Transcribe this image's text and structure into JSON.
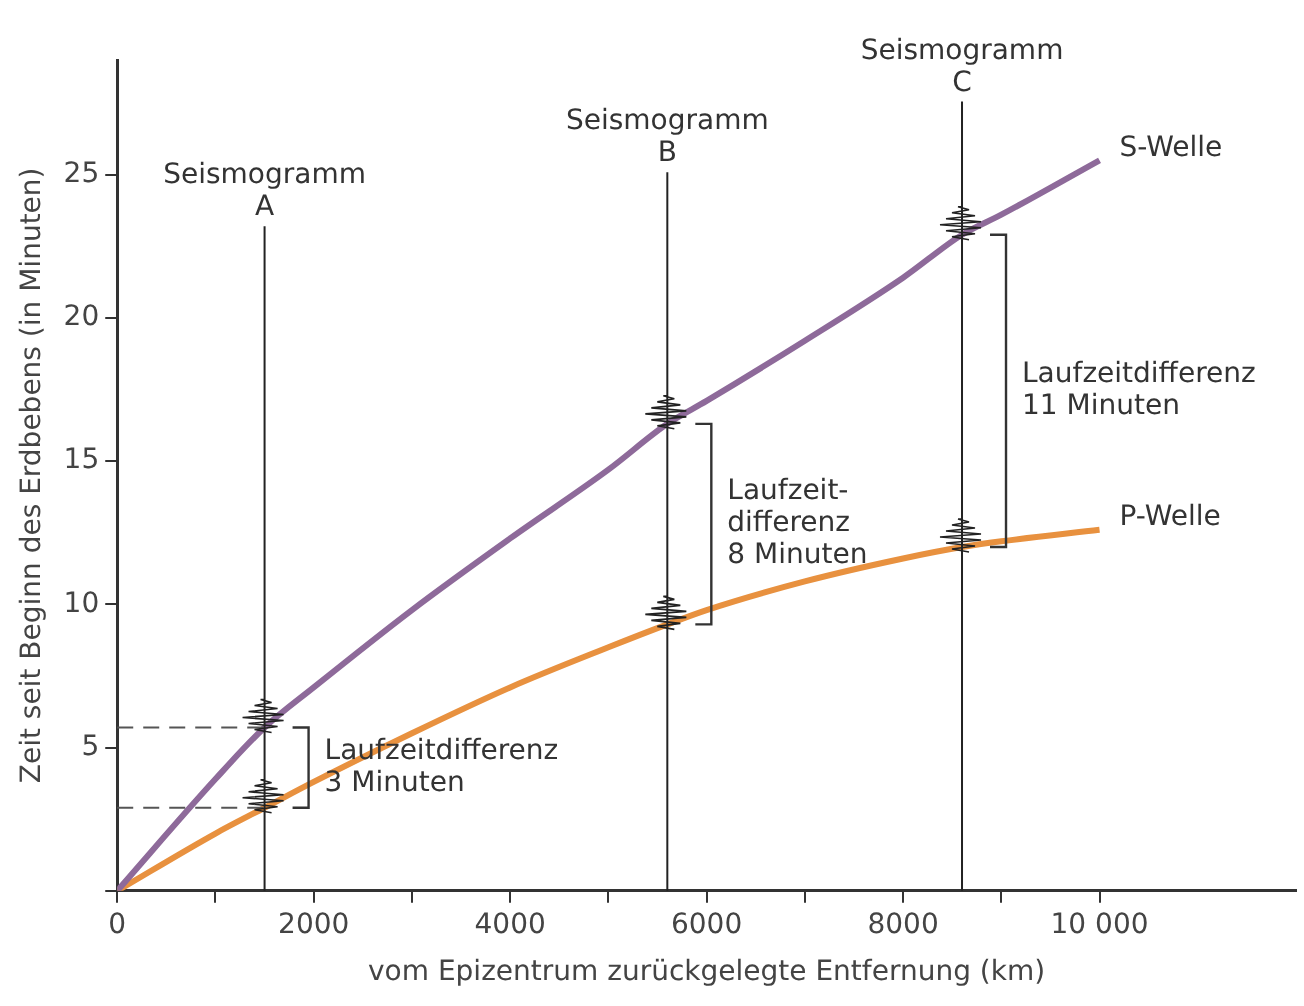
{
  "chart_data": {
    "type": "line",
    "xlabel": "vom Epizentrum zurückgelegte Entfernung (km)",
    "ylabel": "Zeit seit Beginn des Erdbebens (in Minuten)",
    "x": [
      0,
      1000,
      1500,
      2000,
      3000,
      4000,
      5000,
      5600,
      6000,
      7000,
      8000,
      8600,
      9000,
      10000
    ],
    "series": [
      {
        "name": "S-Welle",
        "color": "#8e6a9a",
        "values": [
          0,
          3.9,
          5.7,
          7.1,
          9.8,
          12.3,
          14.7,
          16.3,
          17.1,
          19.2,
          21.4,
          22.9,
          23.6,
          25.5
        ]
      },
      {
        "name": "P-Welle",
        "color": "#e8913f",
        "values": [
          0,
          2,
          2.9,
          3.8,
          5.5,
          7.1,
          8.5,
          9.3,
          9.8,
          10.8,
          11.6,
          12,
          12.2,
          12.6
        ]
      }
    ],
    "xlim": [
      0,
      12000
    ],
    "ylim": [
      0,
      29
    ],
    "xticks": [
      0,
      {
        "value": 1000,
        "label": null
      },
      2000,
      {
        "value": 3000,
        "label": null
      },
      4000,
      {
        "value": 5000,
        "label": null
      },
      6000,
      {
        "value": 7000,
        "label": null
      },
      8000,
      {
        "value": 9000,
        "label": null
      },
      {
        "value": 10000,
        "label": "10 000"
      }
    ],
    "yticks": [
      {
        "value": 0,
        "label": null
      },
      5,
      10,
      15,
      20,
      25
    ],
    "ref_lines": [
      {
        "axis": "y",
        "value": 5.7,
        "line_style": "dashed"
      },
      {
        "axis": "y",
        "value": 2.9,
        "line_style": "dashed"
      },
      {
        "axis": "x",
        "value": 1500,
        "label": "Seismogramm\nA",
        "color": "#222222"
      },
      {
        "axis": "x",
        "value": 5600,
        "label": "Seismogramm\nB",
        "color": "#222222"
      },
      {
        "axis": "x",
        "value": 8600,
        "label": "Seismogramm\nC",
        "color": "#222222"
      }
    ],
    "annotations": [
      "Laufzeitdifferenz\n3 Minuten",
      "Laufzeit-\ndifferenz\n8 Minuten",
      "Laufzeitdifferenz\n11 Minuten"
    ],
    "grid": false,
    "legend": false,
    "marker": "none",
    "line_style": "solid"
  }
}
